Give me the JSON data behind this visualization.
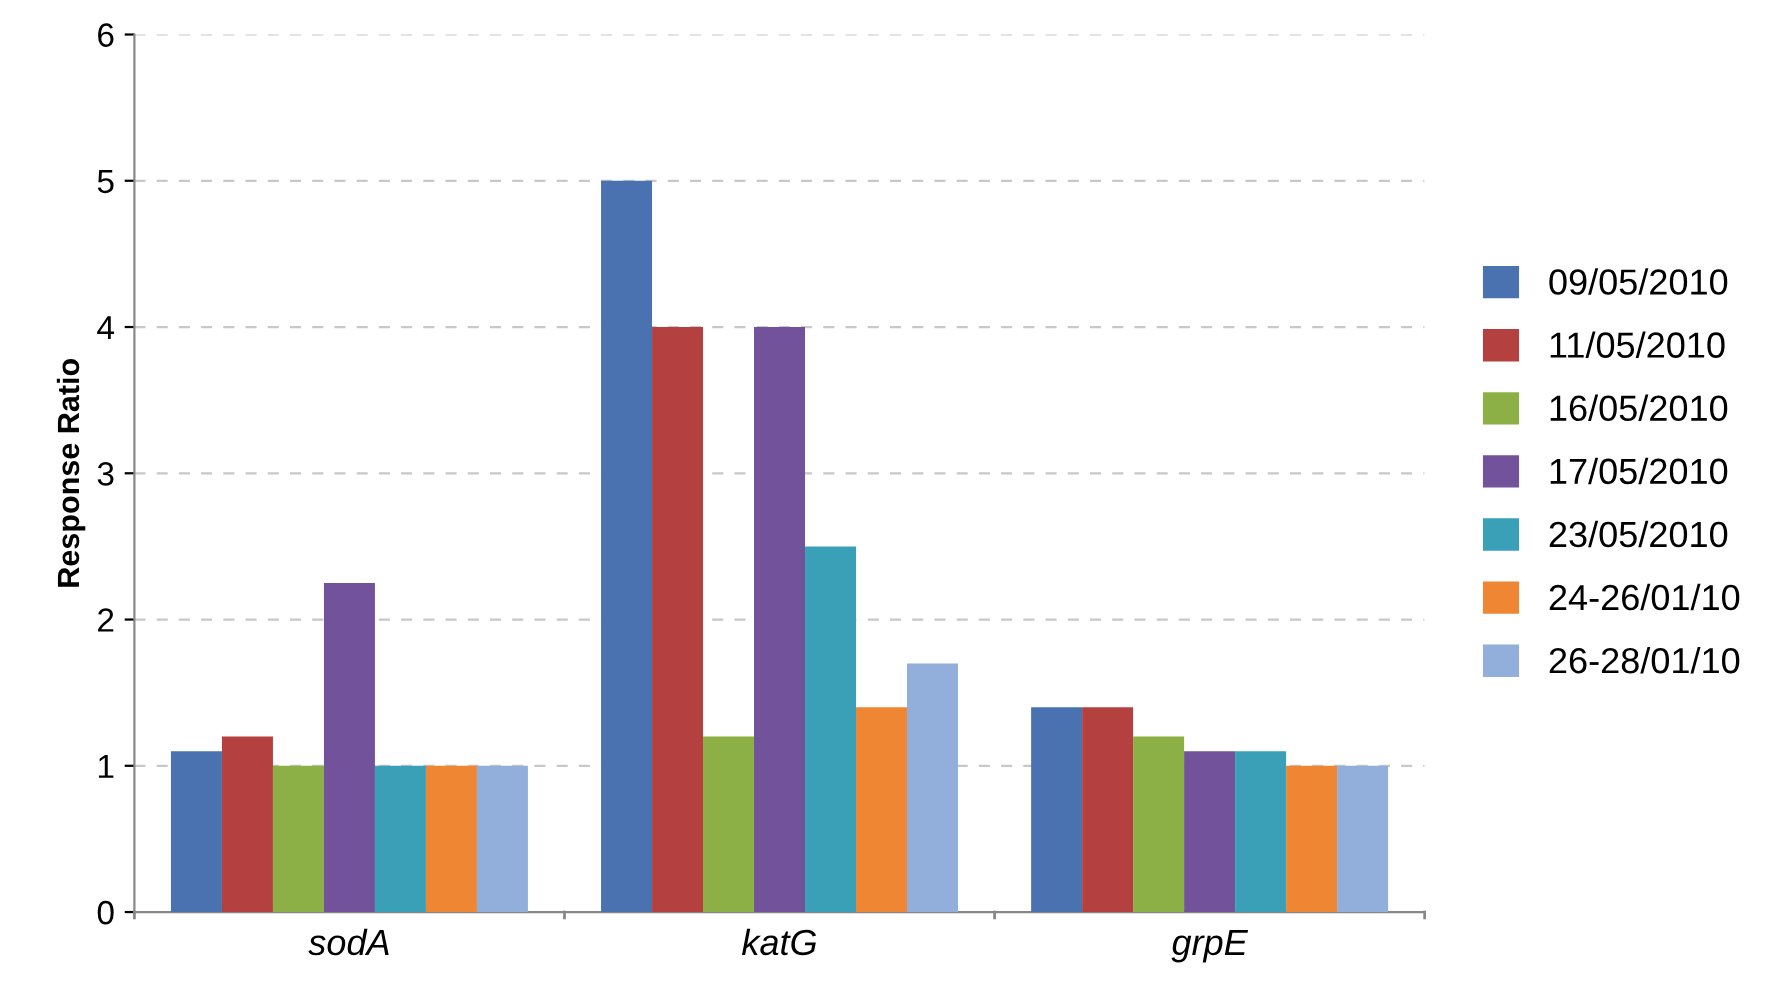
{
  "chart_data": {
    "type": "bar",
    "ylabel": "Response Ratio",
    "categories": [
      "sodA",
      "katG",
      "grpE"
    ],
    "series": [
      {
        "name": "09/05/2010",
        "color": "#4a72b0",
        "values": [
          1.1,
          5,
          1.4
        ]
      },
      {
        "name": "11/05/2010",
        "color": "#b44140",
        "values": [
          1.2,
          4,
          1.4
        ]
      },
      {
        "name": "16/05/2010",
        "color": "#8cb045",
        "values": [
          1,
          1.2,
          1.2
        ]
      },
      {
        "name": "17/05/2010",
        "color": "#72529a",
        "values": [
          2.25,
          4,
          1.1
        ]
      },
      {
        "name": "23/05/2010",
        "color": "#3aa0b8",
        "values": [
          1,
          2.5,
          1.1
        ]
      },
      {
        "name": "24-26/01/10",
        "color": "#ee8634",
        "values": [
          1,
          1.4,
          1
        ]
      },
      {
        "name": "26-28/01/10",
        "color": "#92aedb",
        "values": [
          1,
          1.7,
          1
        ]
      }
    ],
    "ylim": [
      0,
      6
    ],
    "yticks": [
      0,
      1,
      2,
      3,
      4,
      5,
      6
    ],
    "grid": "y",
    "legend": "right"
  }
}
